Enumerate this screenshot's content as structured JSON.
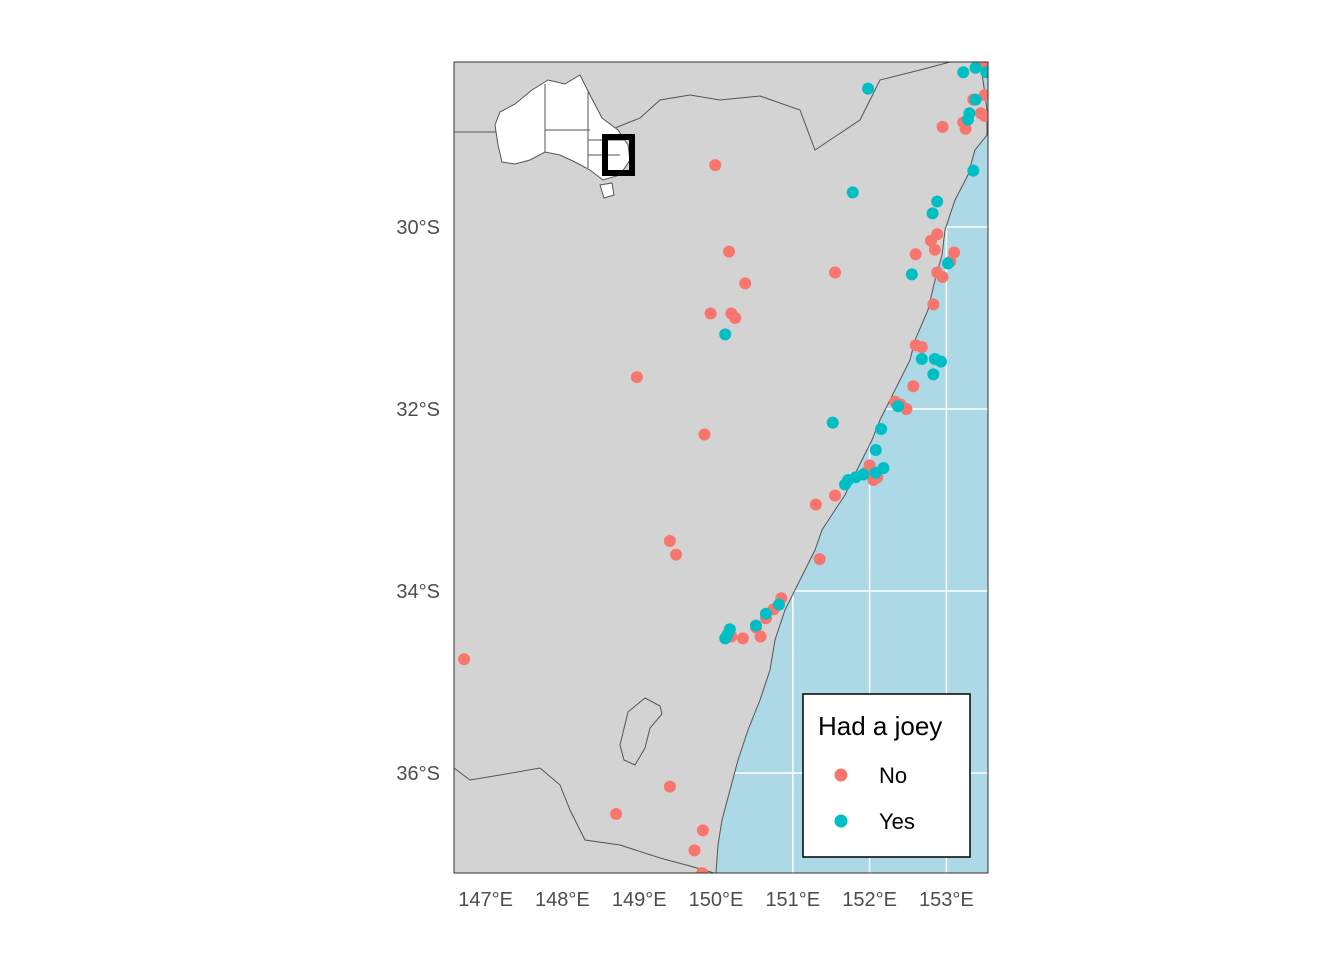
{
  "chart_data": {
    "type": "scatter",
    "title": "",
    "xlabel": "",
    "ylabel": "",
    "xlim": [
      146.7,
      153.6
    ],
    "ylim": [
      -37.1,
      -28.1
    ],
    "x_ticks": [
      {
        "value": 147,
        "label": "147°E"
      },
      {
        "value": 148,
        "label": "148°E"
      },
      {
        "value": 149,
        "label": "149°E"
      },
      {
        "value": 150,
        "label": "150°E"
      },
      {
        "value": 151,
        "label": "151°E"
      },
      {
        "value": 152,
        "label": "152°E"
      },
      {
        "value": 153,
        "label": "153°E"
      }
    ],
    "y_ticks": [
      {
        "value": -30,
        "label": "30°S"
      },
      {
        "value": -32,
        "label": "32°S"
      },
      {
        "value": -34,
        "label": "34°S"
      },
      {
        "value": -36,
        "label": "36°S"
      }
    ],
    "legend": {
      "title": "Had a joey",
      "position": "bottom-right"
    },
    "colors": {
      "land": "#d3d3d3",
      "ocean": "#add8e6",
      "grid": "#ffffff",
      "border": "#555555",
      "inset_fill": "#ffffff",
      "inset_box": "#000000"
    },
    "series": [
      {
        "name": "No",
        "color": "#f8766d",
        "points": [
          [
            153.45,
            -28.15
          ],
          [
            153.52,
            -28.22
          ],
          [
            153.5,
            -28.55
          ],
          [
            153.35,
            -28.6
          ],
          [
            153.45,
            -28.75
          ],
          [
            153.5,
            -28.78
          ],
          [
            153.22,
            -28.85
          ],
          [
            153.25,
            -28.92
          ],
          [
            152.95,
            -28.9
          ],
          [
            149.99,
            -29.32
          ],
          [
            152.88,
            -30.08
          ],
          [
            152.8,
            -30.15
          ],
          [
            152.85,
            -30.25
          ],
          [
            152.6,
            -30.3
          ],
          [
            153.1,
            -30.28
          ],
          [
            153.05,
            -30.38
          ],
          [
            152.95,
            -30.55
          ],
          [
            152.88,
            -30.5
          ],
          [
            150.17,
            -30.27
          ],
          [
            150.38,
            -30.62
          ],
          [
            151.55,
            -30.5
          ],
          [
            149.93,
            -30.95
          ],
          [
            150.2,
            -30.95
          ],
          [
            150.25,
            -31.0
          ],
          [
            152.83,
            -30.85
          ],
          [
            152.6,
            -31.3
          ],
          [
            152.68,
            -31.32
          ],
          [
            148.97,
            -31.65
          ],
          [
            152.57,
            -31.75
          ],
          [
            152.33,
            -31.92
          ],
          [
            152.4,
            -31.95
          ],
          [
            152.48,
            -32.0
          ],
          [
            149.85,
            -32.28
          ],
          [
            152.0,
            -32.62
          ],
          [
            151.95,
            -32.7
          ],
          [
            152.1,
            -32.75
          ],
          [
            152.05,
            -32.78
          ],
          [
            151.55,
            -32.95
          ],
          [
            151.3,
            -33.05
          ],
          [
            149.4,
            -33.45
          ],
          [
            149.48,
            -33.6
          ],
          [
            151.35,
            -33.65
          ],
          [
            150.85,
            -34.08
          ],
          [
            150.75,
            -34.2
          ],
          [
            150.65,
            -34.3
          ],
          [
            150.52,
            -34.4
          ],
          [
            150.2,
            -34.5
          ],
          [
            150.35,
            -34.52
          ],
          [
            150.58,
            -34.5
          ],
          [
            146.72,
            -34.75
          ],
          [
            149.4,
            -36.15
          ],
          [
            148.7,
            -36.45
          ],
          [
            149.83,
            -36.63
          ],
          [
            149.72,
            -36.85
          ],
          [
            149.82,
            -37.1
          ]
        ]
      },
      {
        "name": "Yes",
        "color": "#00bfc4",
        "points": [
          [
            151.98,
            -28.48
          ],
          [
            153.22,
            -28.3
          ],
          [
            153.38,
            -28.25
          ],
          [
            153.52,
            -28.3
          ],
          [
            153.38,
            -28.6
          ],
          [
            153.3,
            -28.75
          ],
          [
            153.28,
            -28.82
          ],
          [
            153.35,
            -29.38
          ],
          [
            151.78,
            -29.62
          ],
          [
            152.88,
            -29.72
          ],
          [
            152.82,
            -29.85
          ],
          [
            152.55,
            -30.52
          ],
          [
            153.02,
            -30.4
          ],
          [
            150.12,
            -31.18
          ],
          [
            152.68,
            -31.45
          ],
          [
            152.85,
            -31.45
          ],
          [
            152.93,
            -31.48
          ],
          [
            152.83,
            -31.62
          ],
          [
            152.37,
            -31.97
          ],
          [
            151.52,
            -32.15
          ],
          [
            152.15,
            -32.22
          ],
          [
            152.08,
            -32.45
          ],
          [
            152.18,
            -32.65
          ],
          [
            152.08,
            -32.7
          ],
          [
            151.92,
            -32.72
          ],
          [
            151.82,
            -32.75
          ],
          [
            151.72,
            -32.78
          ],
          [
            151.68,
            -32.83
          ],
          [
            150.82,
            -34.15
          ],
          [
            150.65,
            -34.25
          ],
          [
            150.52,
            -34.38
          ],
          [
            150.18,
            -34.42
          ],
          [
            150.15,
            -34.48
          ],
          [
            150.12,
            -34.52
          ]
        ]
      }
    ]
  }
}
